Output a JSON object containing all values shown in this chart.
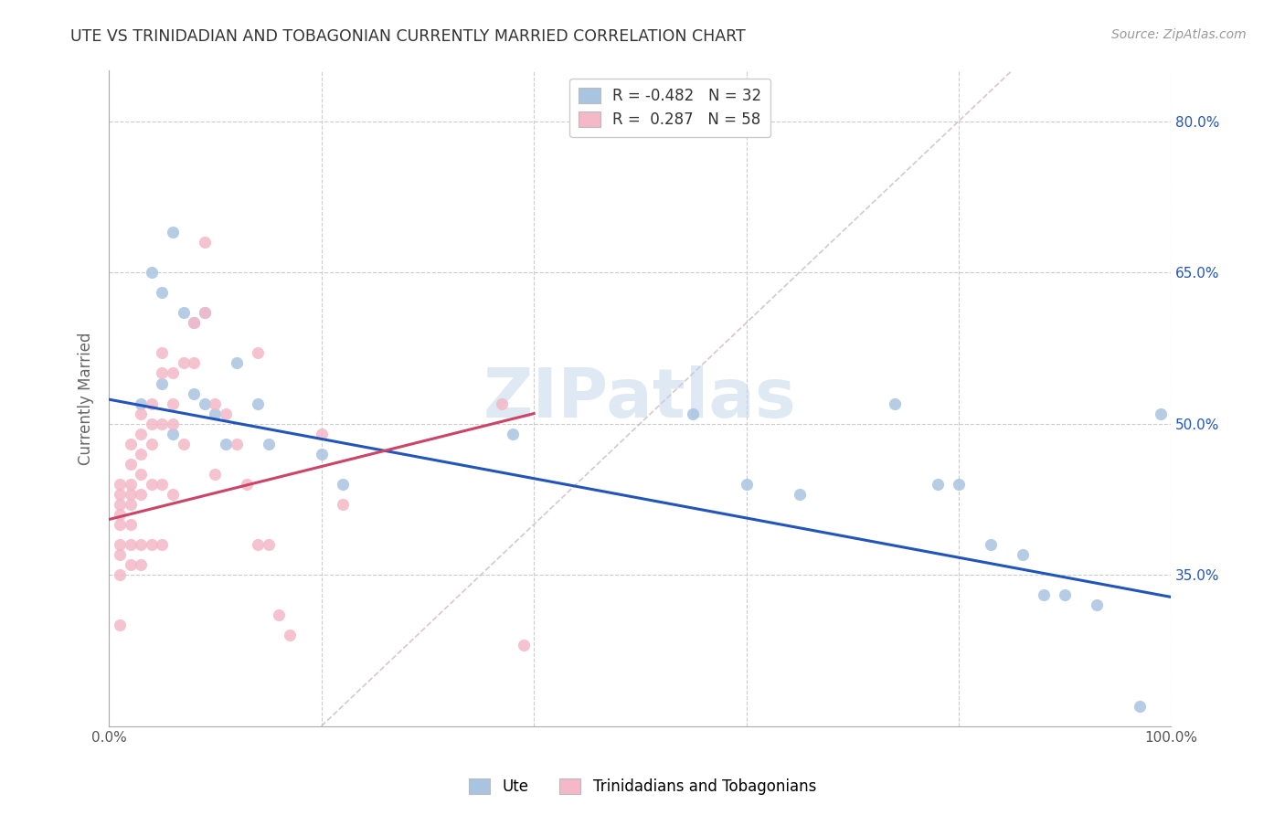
{
  "title": "UTE VS TRINIDADIAN AND TOBAGONIAN CURRENTLY MARRIED CORRELATION CHART",
  "source": "Source: ZipAtlas.com",
  "ylabel": "Currently Married",
  "watermark": "ZIPatlas",
  "blue_R": -0.482,
  "blue_N": 32,
  "pink_R": 0.287,
  "pink_N": 58,
  "xlim": [
    0.0,
    1.0
  ],
  "ylim": [
    0.2,
    0.85
  ],
  "ytick_positions": [
    0.35,
    0.5,
    0.65,
    0.8
  ],
  "ytick_labels": [
    "35.0%",
    "50.0%",
    "65.0%",
    "80.0%"
  ],
  "blue_color": "#a8c4e0",
  "pink_color": "#f4b8c8",
  "blue_line_color": "#2255bb",
  "pink_line_color": "#cc4466",
  "diagonal_color": "#ccbbbb",
  "background": "#ffffff",
  "blue_points_x": [
    0.03,
    0.04,
    0.05,
    0.05,
    0.06,
    0.06,
    0.07,
    0.08,
    0.08,
    0.09,
    0.09,
    0.1,
    0.11,
    0.12,
    0.14,
    0.15,
    0.2,
    0.22,
    0.38,
    0.55,
    0.6,
    0.65,
    0.74,
    0.78,
    0.8,
    0.83,
    0.86,
    0.88,
    0.9,
    0.93,
    0.97,
    0.99
  ],
  "blue_points_y": [
    0.52,
    0.65,
    0.63,
    0.54,
    0.69,
    0.49,
    0.61,
    0.6,
    0.53,
    0.61,
    0.52,
    0.51,
    0.48,
    0.56,
    0.52,
    0.48,
    0.47,
    0.44,
    0.49,
    0.51,
    0.44,
    0.43,
    0.52,
    0.44,
    0.44,
    0.38,
    0.37,
    0.33,
    0.33,
    0.32,
    0.22,
    0.51
  ],
  "pink_points_x": [
    0.01,
    0.01,
    0.01,
    0.01,
    0.01,
    0.01,
    0.01,
    0.01,
    0.01,
    0.02,
    0.02,
    0.02,
    0.02,
    0.02,
    0.02,
    0.02,
    0.02,
    0.03,
    0.03,
    0.03,
    0.03,
    0.03,
    0.03,
    0.03,
    0.04,
    0.04,
    0.04,
    0.04,
    0.04,
    0.05,
    0.05,
    0.05,
    0.05,
    0.05,
    0.06,
    0.06,
    0.06,
    0.06,
    0.07,
    0.07,
    0.08,
    0.08,
    0.09,
    0.09,
    0.1,
    0.1,
    0.11,
    0.12,
    0.13,
    0.14,
    0.14,
    0.15,
    0.16,
    0.17,
    0.2,
    0.22,
    0.37,
    0.39
  ],
  "pink_points_y": [
    0.44,
    0.43,
    0.42,
    0.41,
    0.4,
    0.38,
    0.37,
    0.35,
    0.3,
    0.48,
    0.46,
    0.44,
    0.43,
    0.42,
    0.4,
    0.38,
    0.36,
    0.51,
    0.49,
    0.47,
    0.45,
    0.43,
    0.38,
    0.36,
    0.52,
    0.5,
    0.48,
    0.44,
    0.38,
    0.57,
    0.55,
    0.5,
    0.44,
    0.38,
    0.55,
    0.52,
    0.5,
    0.43,
    0.56,
    0.48,
    0.6,
    0.56,
    0.68,
    0.61,
    0.52,
    0.45,
    0.51,
    0.48,
    0.44,
    0.57,
    0.38,
    0.38,
    0.31,
    0.29,
    0.49,
    0.42,
    0.52,
    0.28
  ],
  "blue_line_x": [
    0.0,
    1.0
  ],
  "blue_line_y": [
    0.524,
    0.328
  ],
  "pink_line_x": [
    0.0,
    0.4
  ],
  "pink_line_y": [
    0.405,
    0.51
  ]
}
